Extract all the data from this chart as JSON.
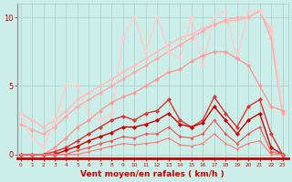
{
  "bg_color": "#cceee8",
  "grid_color": "#aacccc",
  "xlabel": "Vent moyen/en rafales ( km/h )",
  "xlabel_color": "#cc0000",
  "tick_color": "#cc0000",
  "x_ticks": [
    0,
    1,
    2,
    3,
    4,
    5,
    6,
    7,
    8,
    9,
    10,
    11,
    12,
    13,
    14,
    15,
    16,
    17,
    18,
    19,
    20,
    21,
    22,
    23
  ],
  "ylim": [
    -0.3,
    11
  ],
  "xlim": [
    -0.3,
    23.5
  ],
  "yticks": [
    0,
    5,
    10
  ],
  "series": [
    {
      "x": [
        0,
        1,
        2,
        3,
        4,
        5,
        6,
        7,
        8,
        9,
        10,
        11,
        12,
        13,
        14,
        15,
        16,
        17,
        18,
        19,
        20,
        21,
        22,
        23
      ],
      "y": [
        3.0,
        2.5,
        2.0,
        2.5,
        3.2,
        4.0,
        4.5,
        5.0,
        5.5,
        6.0,
        6.5,
        7.0,
        7.5,
        8.0,
        8.5,
        8.8,
        9.2,
        9.5,
        9.7,
        9.8,
        10.0,
        10.5,
        9.0,
        3.2
      ],
      "color": "#ffbbbb",
      "linewidth": 1.0,
      "marker": "D",
      "markersize": 2.5
    },
    {
      "x": [
        0,
        1,
        2,
        3,
        4,
        5,
        6,
        7,
        8,
        9,
        10,
        11,
        12,
        13,
        14,
        15,
        16,
        17,
        18,
        19,
        20,
        21,
        22,
        23
      ],
      "y": [
        2.2,
        1.8,
        1.5,
        2.0,
        2.8,
        3.5,
        4.0,
        4.5,
        5.0,
        5.5,
        6.0,
        6.5,
        7.0,
        7.5,
        8.0,
        8.5,
        9.0,
        9.5,
        9.8,
        10.0,
        10.0,
        10.5,
        8.5,
        3.0
      ],
      "color": "#ffaaaa",
      "linewidth": 1.0,
      "marker": "D",
      "markersize": 2.5
    },
    {
      "x": [
        0,
        1,
        2,
        3,
        4,
        5,
        6,
        7,
        8,
        9,
        10,
        11,
        12,
        13,
        14,
        15,
        16,
        17,
        18,
        19,
        20,
        21,
        22,
        23
      ],
      "y": [
        3.0,
        1.2,
        0.5,
        2.5,
        5.0,
        5.0,
        3.0,
        2.5,
        3.0,
        8.5,
        10.0,
        7.5,
        10.0,
        7.5,
        7.0,
        10.0,
        6.5,
        10.0,
        10.5,
        7.0,
        10.5,
        10.5,
        9.2,
        3.2
      ],
      "color": "#ffcccc",
      "linewidth": 1.0,
      "marker": "D",
      "markersize": 2.5
    },
    {
      "x": [
        0,
        1,
        2,
        3,
        4,
        5,
        6,
        7,
        8,
        9,
        10,
        11,
        12,
        13,
        14,
        15,
        16,
        17,
        18,
        19,
        20,
        21,
        22,
        23
      ],
      "y": [
        0.0,
        0.0,
        0.0,
        0.5,
        1.2,
        2.0,
        2.5,
        3.2,
        3.8,
        4.2,
        4.5,
        5.0,
        5.5,
        6.0,
        6.2,
        6.8,
        7.2,
        7.5,
        7.5,
        7.0,
        6.5,
        5.0,
        3.5,
        3.2
      ],
      "color": "#ff9999",
      "linewidth": 1.0,
      "marker": "D",
      "markersize": 2.5
    },
    {
      "x": [
        0,
        1,
        2,
        3,
        4,
        5,
        6,
        7,
        8,
        9,
        10,
        11,
        12,
        13,
        14,
        15,
        16,
        17,
        18,
        19,
        20,
        21,
        22,
        23
      ],
      "y": [
        0.0,
        0.0,
        0.0,
        0.2,
        0.5,
        1.0,
        1.5,
        2.0,
        2.5,
        2.8,
        2.5,
        3.0,
        3.2,
        4.0,
        2.5,
        2.0,
        2.5,
        4.2,
        3.0,
        2.0,
        3.5,
        4.0,
        1.5,
        0.0
      ],
      "color": "#dd3333",
      "linewidth": 1.0,
      "marker": "D",
      "markersize": 2.5
    },
    {
      "x": [
        0,
        1,
        2,
        3,
        4,
        5,
        6,
        7,
        8,
        9,
        10,
        11,
        12,
        13,
        14,
        15,
        16,
        17,
        18,
        19,
        20,
        21,
        22,
        23
      ],
      "y": [
        0.0,
        0.0,
        0.0,
        0.0,
        0.3,
        0.6,
        1.0,
        1.3,
        1.6,
        2.0,
        2.0,
        2.2,
        2.5,
        3.0,
        2.2,
        2.0,
        2.3,
        3.5,
        2.5,
        1.5,
        2.5,
        3.0,
        0.5,
        0.0
      ],
      "color": "#cc0000",
      "linewidth": 1.0,
      "marker": "D",
      "markersize": 2.5
    },
    {
      "x": [
        0,
        1,
        2,
        3,
        4,
        5,
        6,
        7,
        8,
        9,
        10,
        11,
        12,
        13,
        14,
        15,
        16,
        17,
        18,
        19,
        20,
        21,
        22,
        23
      ],
      "y": [
        0.0,
        0.0,
        0.0,
        0.0,
        0.0,
        0.3,
        0.5,
        0.8,
        1.0,
        1.3,
        1.2,
        1.5,
        1.5,
        2.0,
        1.3,
        1.2,
        1.5,
        2.5,
        1.5,
        0.8,
        1.5,
        2.0,
        0.2,
        0.0
      ],
      "color": "#ee5555",
      "linewidth": 0.8,
      "marker": "D",
      "markersize": 2.0
    },
    {
      "x": [
        0,
        1,
        2,
        3,
        4,
        5,
        6,
        7,
        8,
        9,
        10,
        11,
        12,
        13,
        14,
        15,
        16,
        17,
        18,
        19,
        20,
        21,
        22,
        23
      ],
      "y": [
        0.0,
        0.0,
        0.0,
        0.0,
        0.0,
        0.0,
        0.2,
        0.4,
        0.6,
        0.8,
        0.7,
        0.8,
        0.9,
        1.2,
        0.7,
        0.6,
        0.8,
        1.5,
        0.8,
        0.4,
        0.8,
        1.0,
        0.0,
        0.0
      ],
      "color": "#ff7777",
      "linewidth": 0.8,
      "marker": "D",
      "markersize": 1.5
    }
  ]
}
